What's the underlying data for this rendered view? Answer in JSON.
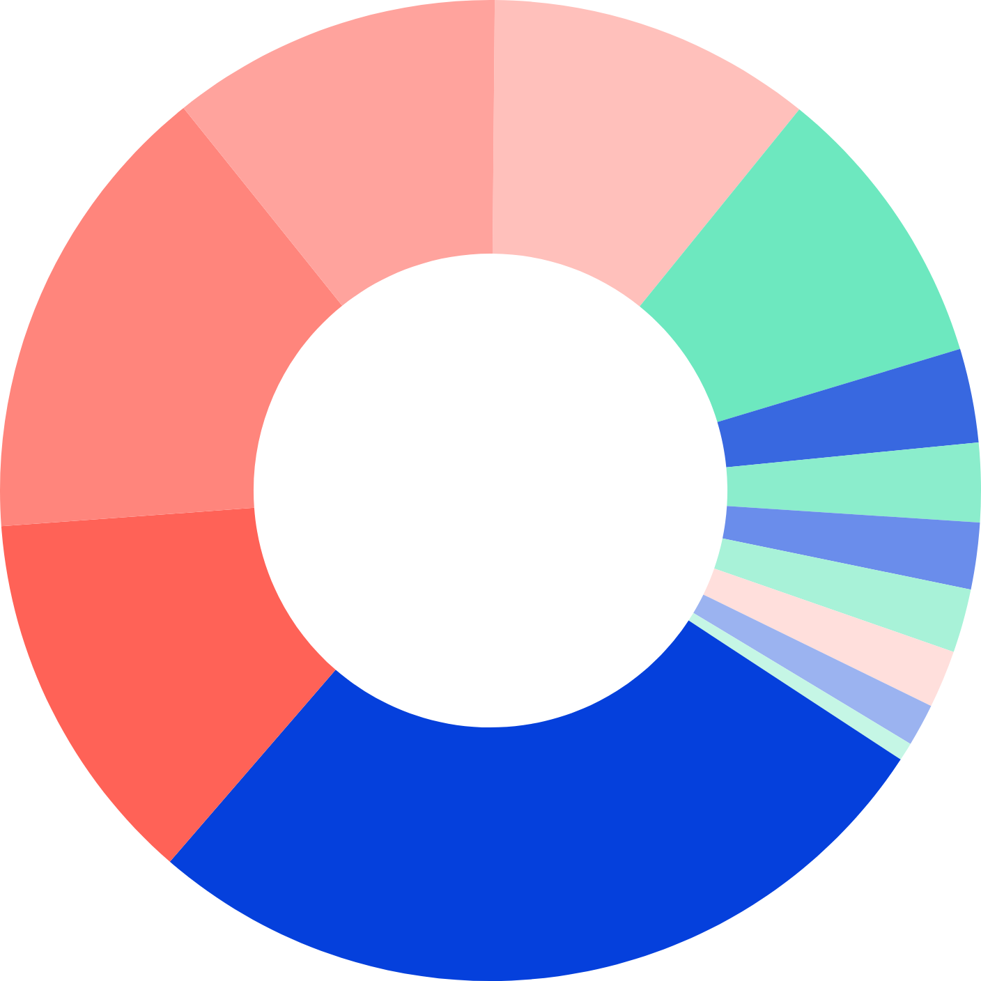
{
  "chart_data": {
    "type": "donut",
    "categories": [
      null,
      null,
      null,
      null,
      null,
      null,
      null,
      null,
      null,
      null,
      null,
      null,
      null
    ],
    "values": [
      10.7,
      9.5,
      3.1,
      2.6,
      2.2,
      2.1,
      1.9,
      1.4,
      0.6,
      27.1,
      12.5,
      15.4,
      10.9
    ],
    "colors": [
      "#ffc0bb",
      "#6de8bf",
      "#3868e0",
      "#8bedcc",
      "#6a8deb",
      "#a8f2d8",
      "#ffdfdc",
      "#9bb3f0",
      "#c5f6e5",
      "#0540dc",
      "#ff6257",
      "#ff857c",
      "#ffa39d"
    ]
  }
}
